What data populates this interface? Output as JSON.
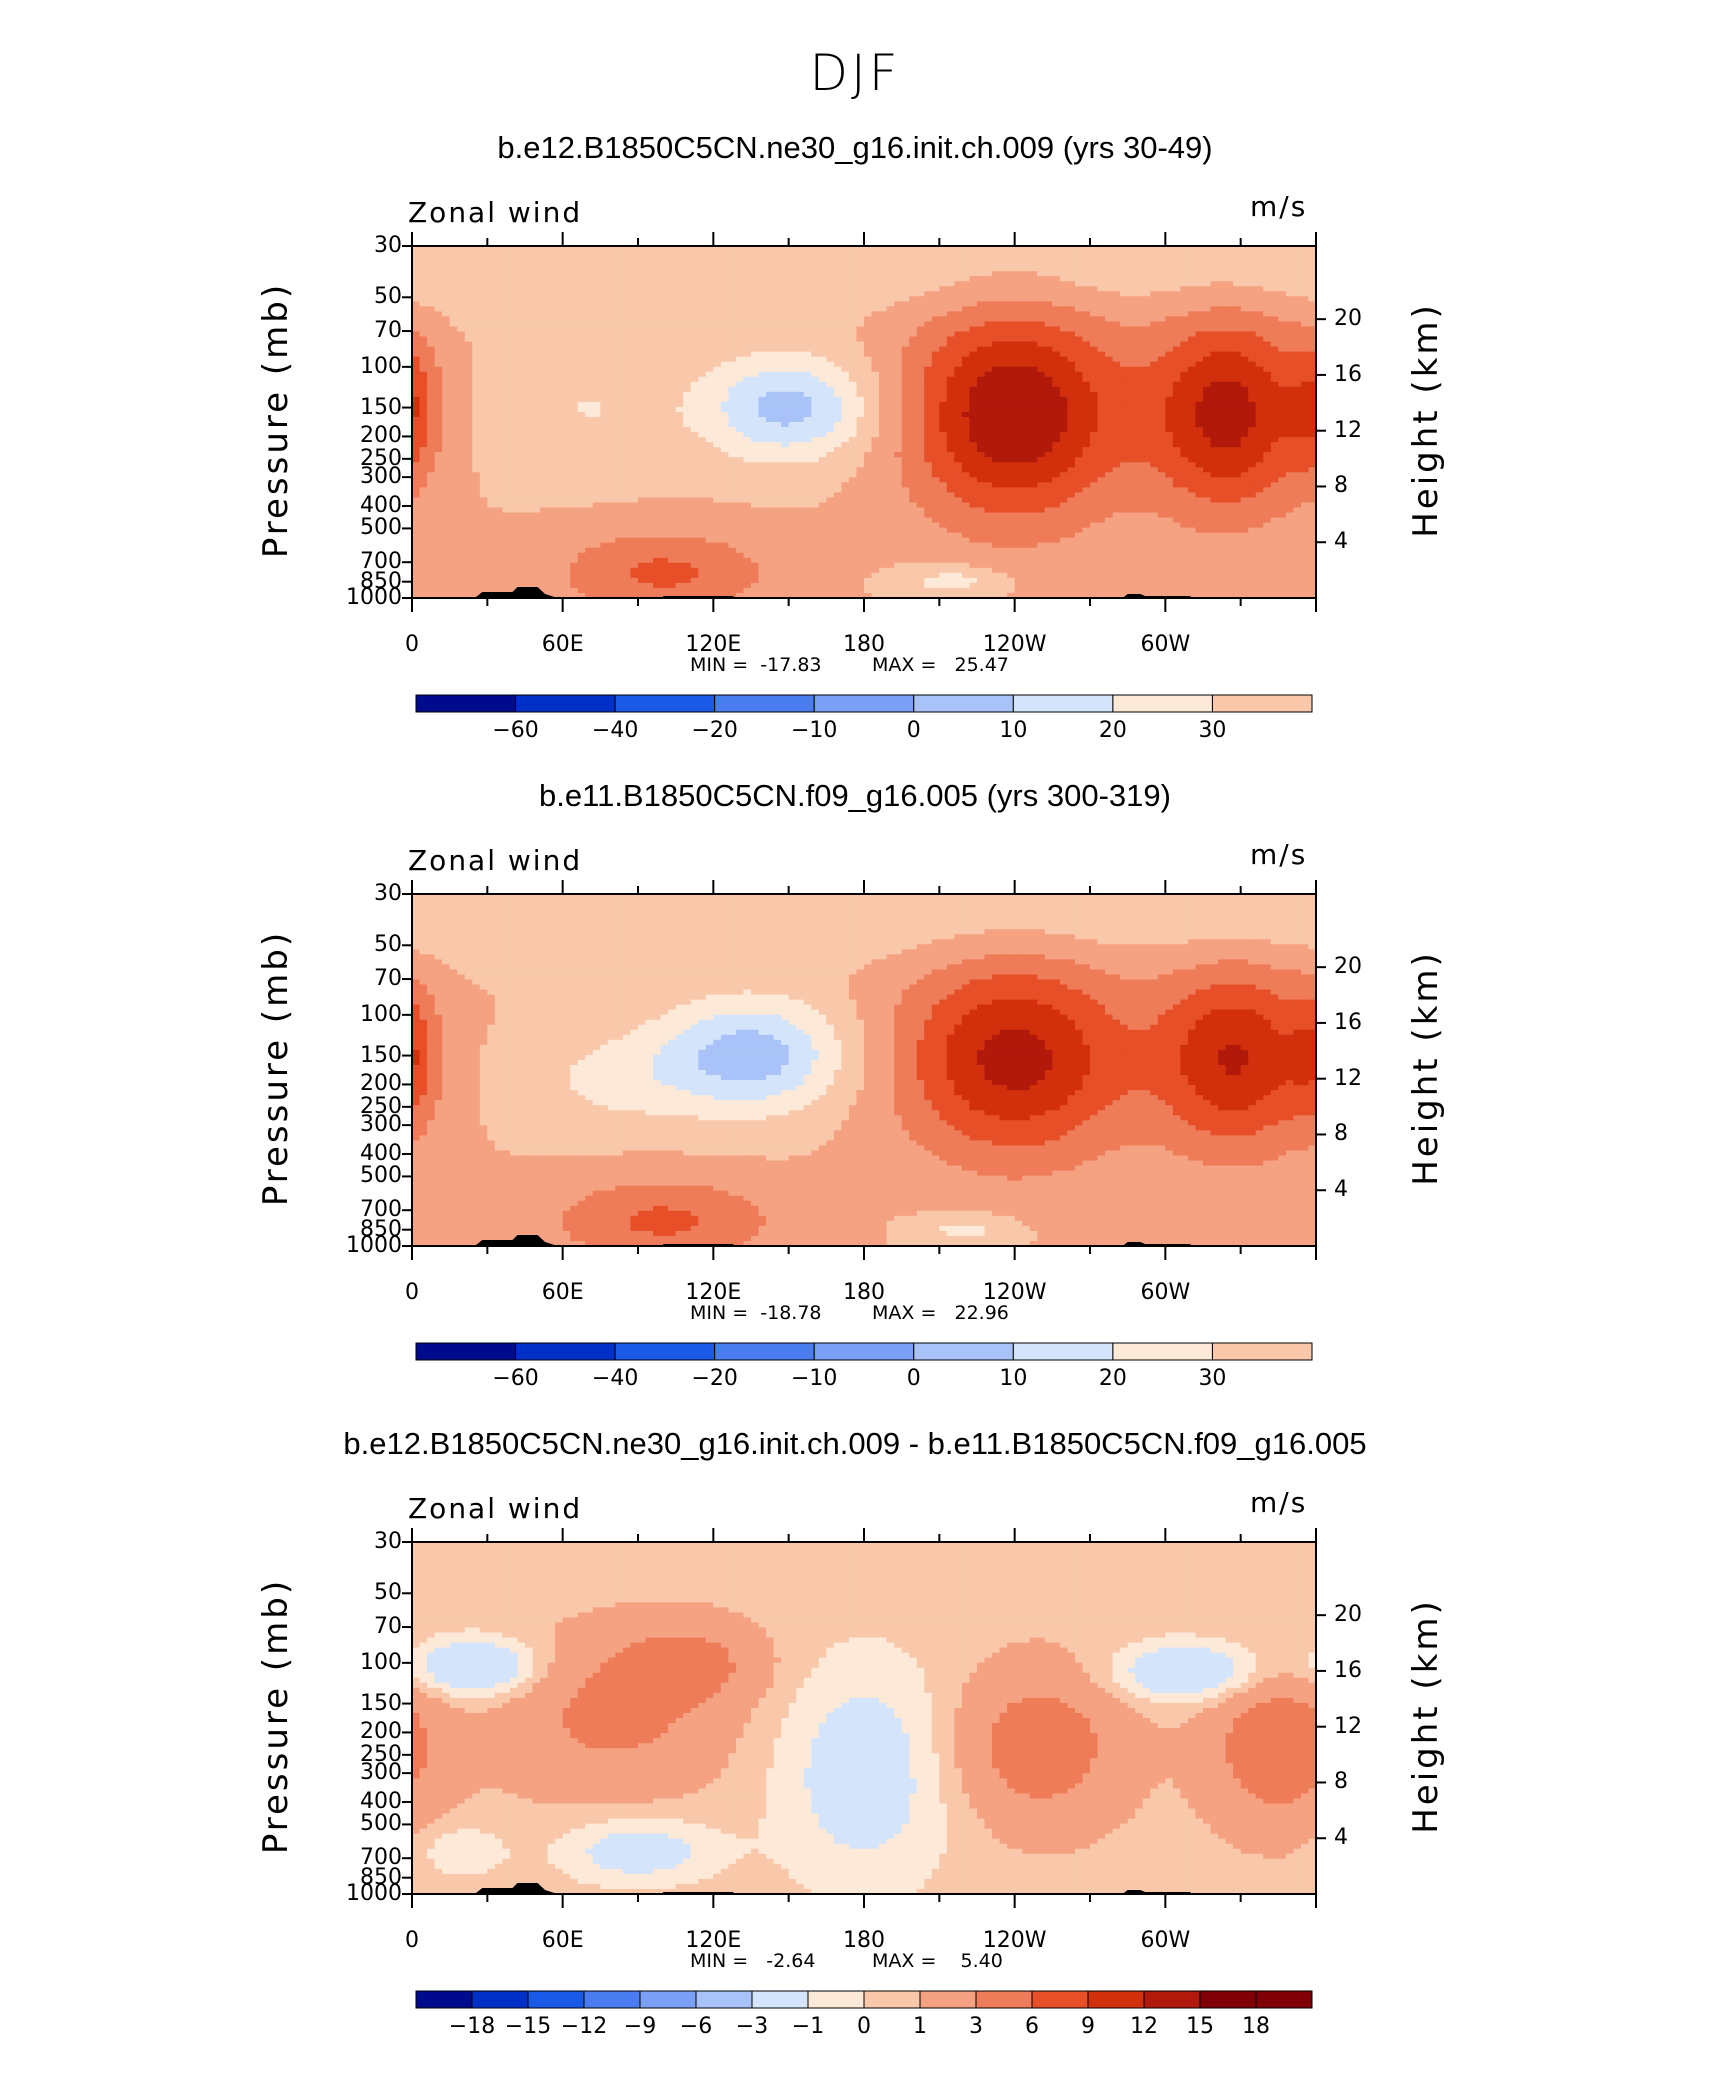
{
  "title": "DJF",
  "charts": [
    {
      "title": "b.e12.B1850C5CN.ne30_g16.init.ch.009 (yrs 30-49)",
      "left_label": "Zonal wind",
      "right_label": "m/s",
      "ylabel": "Pressure (mb)",
      "y2label": "Height (km)",
      "min_label": "MIN =  -17.83",
      "max_label": "MAX =   25.47",
      "colorbar": [
        "-60",
        "-40",
        "-20",
        "-10",
        "0",
        "10",
        "20",
        "30"
      ]
    },
    {
      "title": "b.e11.B1850C5CN.f09_g16.005 (yrs 300-319)",
      "left_label": "Zonal wind",
      "right_label": "m/s",
      "ylabel": "Pressure (mb)",
      "y2label": "Height (km)",
      "min_label": "MIN =  -18.78",
      "max_label": "MAX =   22.96",
      "colorbar": [
        "-60",
        "-40",
        "-20",
        "-10",
        "0",
        "10",
        "20",
        "30"
      ]
    },
    {
      "title": "b.e12.B1850C5CN.ne30_g16.init.ch.009 - b.e11.B1850C5CN.f09_g16.005",
      "left_label": "Zonal wind",
      "right_label": "m/s",
      "ylabel": "Pressure (mb)",
      "y2label": "Height (km)",
      "min_label": "MIN =   -2.64",
      "max_label": "MAX =    5.40",
      "colorbar": [
        "-18",
        "-15",
        "-12",
        "-9",
        "-6",
        "-3",
        "-1",
        "0",
        "1",
        "3",
        "6",
        "9",
        "12",
        "15",
        "18"
      ]
    }
  ],
  "chart_data": [
    {
      "type": "heatmap",
      "title": "b.e12.B1850C5CN.ne30_g16.init.ch.009 (yrs 30-49)",
      "x_tick_labels": [
        "0",
        "60E",
        "120E",
        "180",
        "120W",
        "60W"
      ],
      "x_ticks_deg": [
        0,
        60,
        120,
        180,
        240,
        300
      ],
      "xlim": [
        0,
        360
      ],
      "y_ticks": [
        30,
        50,
        70,
        100,
        150,
        200,
        250,
        300,
        400,
        500,
        700,
        850,
        1000
      ],
      "ylim": [
        1000,
        30
      ],
      "y_scale": "log",
      "y2_ticks": [
        4,
        8,
        12,
        16,
        20
      ],
      "min": -17.83,
      "max": 25.47,
      "palette": [
        "#000a8c",
        "#0030c8",
        "#1a5ae6",
        "#4a7ef0",
        "#7a9ff5",
        "#a9c2f7",
        "#d4e4fa",
        "#fde9d8",
        "#f9c8aa",
        "#f4a281",
        "#ee7c58",
        "#e64f28",
        "#d2300d",
        "#b1190b",
        "#7e0006"
      ],
      "levels": [
        -70,
        -60,
        -50,
        -40,
        -30,
        -20,
        -15,
        -10,
        -5,
        0,
        5,
        10,
        15,
        20,
        25,
        30,
        35
      ],
      "features": [
        {
          "lon": 150,
          "p": 150,
          "sigma_lon": 24,
          "sigma_logp": 0.16,
          "amp": -17
        },
        {
          "lon": 70,
          "p": 150,
          "sigma_lon": 25,
          "sigma_logp": 0.2,
          "amp": -5
        },
        {
          "lon": 240,
          "p": 160,
          "sigma_lon": 30,
          "sigma_logp": 0.32,
          "amp": 25
        },
        {
          "lon": 325,
          "p": 160,
          "sigma_lon": 22,
          "sigma_logp": 0.3,
          "amp": 22
        },
        {
          "lon": 0,
          "p": 150,
          "sigma_lon": 8,
          "sigma_logp": 0.22,
          "amp": 10
        },
        {
          "lon": 100,
          "p": 780,
          "sigma_lon": 30,
          "sigma_logp": 0.13,
          "amp": 11
        },
        {
          "lon": 215,
          "p": 850,
          "sigma_lon": 15,
          "sigma_logp": 0.05,
          "amp": -8
        }
      ]
    },
    {
      "type": "heatmap",
      "title": "b.e11.B1850C5CN.f09_g16.005 (yrs 300-319)",
      "x_tick_labels": [
        "0",
        "60E",
        "120E",
        "180",
        "120W",
        "60W"
      ],
      "x_ticks_deg": [
        0,
        60,
        120,
        180,
        240,
        300
      ],
      "xlim": [
        0,
        360
      ],
      "y_ticks": [
        30,
        50,
        70,
        100,
        150,
        200,
        250,
        300,
        400,
        500,
        700,
        850,
        1000
      ],
      "ylim": [
        1000,
        30
      ],
      "y_scale": "log",
      "y2_ticks": [
        4,
        8,
        12,
        16,
        20
      ],
      "min": -18.78,
      "max": 22.96,
      "palette": [
        "#000a8c",
        "#0030c8",
        "#1a5ae6",
        "#4a7ef0",
        "#7a9ff5",
        "#a9c2f7",
        "#d4e4fa",
        "#fde9d8",
        "#f9c8aa",
        "#f4a281",
        "#ee7c58",
        "#e64f28",
        "#d2300d",
        "#b1190b",
        "#7e0006"
      ],
      "levels": [
        -70,
        -60,
        -50,
        -40,
        -30,
        -20,
        -15,
        -10,
        -5,
        0,
        5,
        10,
        15,
        20,
        25,
        30,
        35
      ],
      "features": [
        {
          "lon": 135,
          "p": 150,
          "sigma_lon": 26,
          "sigma_logp": 0.17,
          "amp": -18
        },
        {
          "lon": 80,
          "p": 190,
          "sigma_lon": 25,
          "sigma_logp": 0.15,
          "amp": -6
        },
        {
          "lon": 240,
          "p": 155,
          "sigma_lon": 32,
          "sigma_logp": 0.3,
          "amp": 22
        },
        {
          "lon": 328,
          "p": 155,
          "sigma_lon": 22,
          "sigma_logp": 0.28,
          "amp": 20
        },
        {
          "lon": 0,
          "p": 150,
          "sigma_lon": 8,
          "sigma_logp": 0.22,
          "amp": 9
        },
        {
          "lon": 100,
          "p": 780,
          "sigma_lon": 32,
          "sigma_logp": 0.13,
          "amp": 11
        },
        {
          "lon": 220,
          "p": 850,
          "sigma_lon": 14,
          "sigma_logp": 0.05,
          "amp": -7
        }
      ]
    },
    {
      "type": "heatmap",
      "title": "b.e12.B1850C5CN.ne30_g16.init.ch.009 - b.e11.B1850C5CN.f09_g16.005",
      "x_tick_labels": [
        "0",
        "60E",
        "120E",
        "180",
        "120W",
        "60W"
      ],
      "x_ticks_deg": [
        0,
        60,
        120,
        180,
        240,
        300
      ],
      "xlim": [
        0,
        360
      ],
      "y_ticks": [
        30,
        50,
        70,
        100,
        150,
        200,
        250,
        300,
        400,
        500,
        700,
        850,
        1000
      ],
      "ylim": [
        1000,
        30
      ],
      "y_scale": "log",
      "y2_ticks": [
        4,
        8,
        12,
        16,
        20
      ],
      "min": -2.64,
      "max": 5.4,
      "palette": [
        "#000a8c",
        "#0030c8",
        "#1a5ae6",
        "#4a7ef0",
        "#7a9ff5",
        "#a9c2f7",
        "#d4e4fa",
        "#fde9d8",
        "#f9c8aa",
        "#f4a281",
        "#ee7c58",
        "#e64f28",
        "#d2300d",
        "#b1190b",
        "#7e0006",
        "#7e0006"
      ],
      "levels": [
        -21,
        -18,
        -15,
        -12,
        -9,
        -6,
        -3,
        -1,
        0,
        1,
        3,
        6,
        9,
        12,
        15,
        18,
        21
      ],
      "base": 0.6,
      "features": [
        {
          "lon": 25,
          "p": 105,
          "sigma_lon": 18,
          "sigma_logp": 0.09,
          "amp": -4
        },
        {
          "lon": 310,
          "p": 110,
          "sigma_lon": 22,
          "sigma_logp": 0.09,
          "amp": -3.5
        },
        {
          "lon": 180,
          "p": 300,
          "sigma_lon": 25,
          "sigma_logp": 0.35,
          "amp": -2.5
        },
        {
          "lon": 90,
          "p": 650,
          "sigma_lon": 22,
          "sigma_logp": 0.1,
          "amp": -2.5
        },
        {
          "lon": 20,
          "p": 650,
          "sigma_lon": 12,
          "sigma_logp": 0.08,
          "amp": -1.5
        },
        {
          "lon": 250,
          "p": 230,
          "sigma_lon": 22,
          "sigma_logp": 0.22,
          "amp": 4
        },
        {
          "lon": 345,
          "p": 230,
          "sigma_lon": 18,
          "sigma_logp": 0.22,
          "amp": 4.5
        },
        {
          "lon": 80,
          "p": 170,
          "sigma_lon": 30,
          "sigma_logp": 0.22,
          "amp": 3
        },
        {
          "lon": 110,
          "p": 100,
          "sigma_lon": 20,
          "sigma_logp": 0.12,
          "amp": 3
        }
      ]
    }
  ]
}
